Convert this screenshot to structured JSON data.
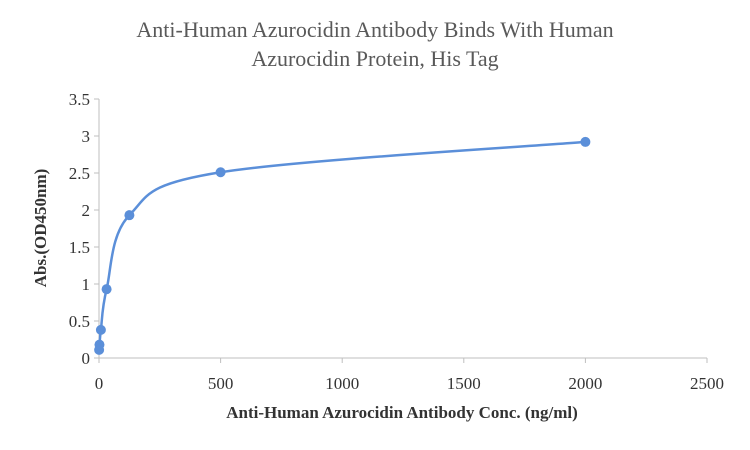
{
  "chart_data": {
    "type": "scatter",
    "title_lines": [
      "Anti-Human Azurocidin Antibody Binds With Human",
      "Azurocidin Protein, His Tag"
    ],
    "xlabel": "Anti-Human Azurocidin Antibody Conc. (ng/ml)",
    "ylabel": "Abs.(OD450nm)",
    "xlim": [
      0,
      2500
    ],
    "ylim": [
      0,
      3.5
    ],
    "x_ticks": [
      0,
      500,
      1000,
      1500,
      2000,
      2500
    ],
    "y_ticks": [
      0,
      0.5,
      1,
      1.5,
      2,
      2.5,
      3,
      3.5
    ],
    "x_tick_labels": [
      "0",
      "500",
      "1000",
      "1500",
      "2000",
      "2500"
    ],
    "y_tick_labels": [
      "0",
      "0.5",
      "1",
      "1.5",
      "2",
      "2.5",
      "3",
      "3.5"
    ],
    "grid": false,
    "smooth_line": true,
    "series": [
      {
        "color": "#5b8fd9",
        "x": [
          0.49,
          1.95,
          7.81,
          31.25,
          125,
          500,
          2000
        ],
        "y": [
          0.11,
          0.18,
          0.38,
          0.93,
          1.93,
          2.51,
          2.92
        ]
      }
    ]
  }
}
